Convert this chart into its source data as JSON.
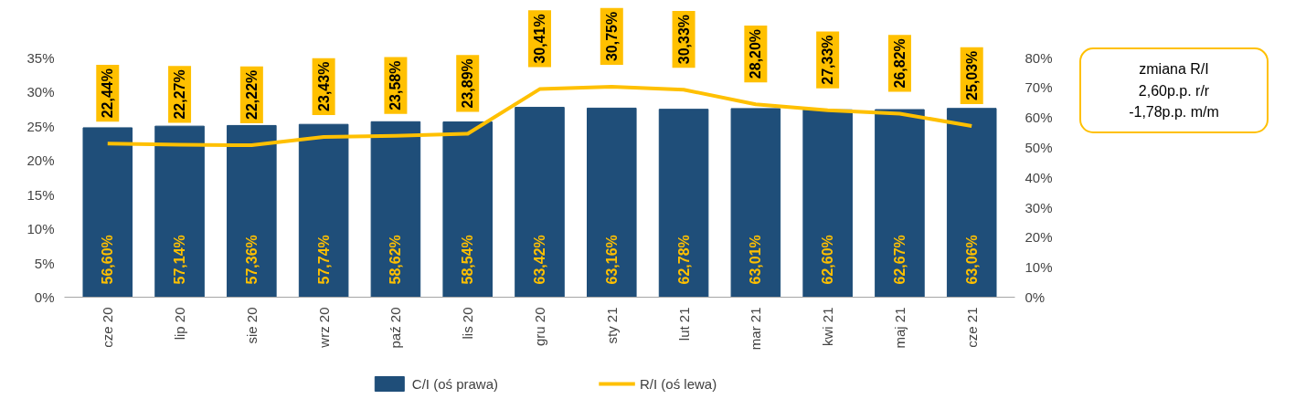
{
  "chart_data": {
    "type": "bar",
    "categories": [
      "cze 20",
      "lip 20",
      "sie 20",
      "wrz 20",
      "paź 20",
      "lis 20",
      "gru 20",
      "sty 21",
      "lut 21",
      "mar 21",
      "kwi 21",
      "maj 21",
      "cze 21"
    ],
    "series": [
      {
        "name": "C/I (oś prawa)",
        "axis": "y2",
        "color": "#1f4e79",
        "values": [
          56.6,
          57.14,
          57.36,
          57.74,
          58.62,
          58.54,
          63.42,
          63.16,
          62.78,
          63.01,
          62.6,
          62.67,
          63.06
        ],
        "value_labels": [
          "56,60%",
          "57,14%",
          "57,36%",
          "57,74%",
          "58,62%",
          "58,54%",
          "63,42%",
          "63,16%",
          "62,78%",
          "63,01%",
          "62,60%",
          "62,67%",
          "63,06%"
        ]
      },
      {
        "name": "R/I (oś lewa)",
        "type": "line",
        "color": "#ffc000",
        "values": [
          22.44,
          22.27,
          22.22,
          23.43,
          23.58,
          23.89,
          30.41,
          30.75,
          30.33,
          28.2,
          27.33,
          26.82,
          25.03
        ],
        "value_labels": [
          "22,44%",
          "22,27%",
          "22,22%",
          "23,43%",
          "23,58%",
          "23,89%",
          "30,41%",
          "30,75%",
          "30,33%",
          "28,20%",
          "27,33%",
          "26,82%",
          "25,03%"
        ]
      }
    ],
    "ylim": [
      0,
      35
    ],
    "yticks": [
      {
        "value": 0,
        "label": "0%"
      },
      {
        "value": 5,
        "label": "5%"
      },
      {
        "value": 10,
        "label": "10%"
      },
      {
        "value": 15,
        "label": "15%"
      },
      {
        "value": 20,
        "label": "20%"
      },
      {
        "value": 25,
        "label": "25%"
      },
      {
        "value": 30,
        "label": "30%"
      },
      {
        "value": 35,
        "label": "35%"
      }
    ],
    "y2lim": [
      0,
      80
    ],
    "y2ticks": [
      {
        "value": 0,
        "label": "0%"
      },
      {
        "value": 10,
        "label": "10%"
      },
      {
        "value": 20,
        "label": "20%"
      },
      {
        "value": 30,
        "label": "30%"
      },
      {
        "value": 40,
        "label": "40%"
      },
      {
        "value": 50,
        "label": "50%"
      },
      {
        "value": 60,
        "label": "60%"
      },
      {
        "value": 70,
        "label": "70%"
      },
      {
        "value": 80,
        "label": "80%"
      }
    ],
    "annotations": [
      "zmiana R/I\n2,60p.p. r/r\n-1,78p.p. m/m"
    ],
    "grid": false,
    "legend": "bottom"
  }
}
